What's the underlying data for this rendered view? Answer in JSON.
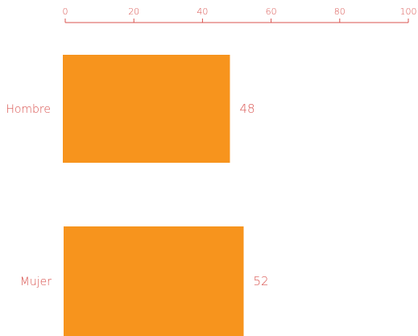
{
  "chart_data": {
    "type": "bar",
    "orientation": "horizontal",
    "categories": [
      "Hombre",
      "Mujer"
    ],
    "values": [
      48,
      52
    ],
    "data_labels": [
      "48",
      "52"
    ],
    "xlim": [
      0,
      100
    ],
    "x_ticks": [
      0,
      20,
      40,
      60,
      80,
      100
    ],
    "x_tick_labels": [
      "0",
      "20",
      "40",
      "60",
      "80",
      "100"
    ],
    "axis_position": "top",
    "grid": false,
    "legend": "none"
  },
  "colors": {
    "bar": "#f7941d",
    "axis": "#d9534f",
    "text": "#d9534f"
  }
}
